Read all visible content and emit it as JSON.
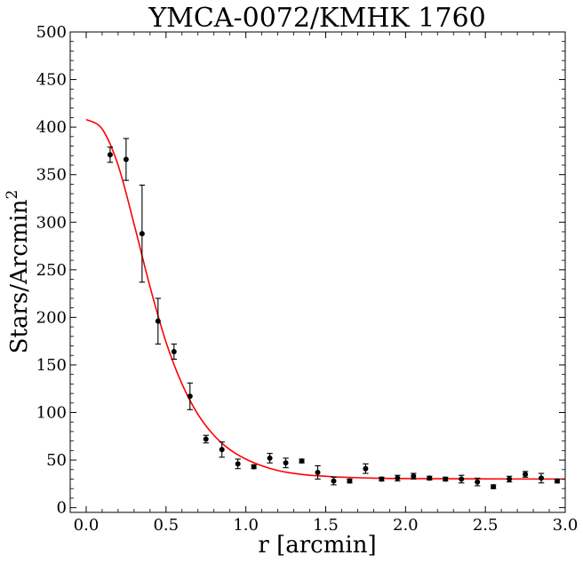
{
  "chart_data": {
    "type": "scatter",
    "title": "YMCA-0072/KMHK 1760",
    "xlabel": "r [arcmin]",
    "ylabel": "Stars/Arcmin",
    "ylabel_superscript": "2",
    "xlim": [
      -0.1,
      3.0
    ],
    "ylim": [
      -5,
      500
    ],
    "xticks": [
      "0.0",
      "0.5",
      "1.0",
      "1.5",
      "2.0",
      "2.5",
      "3.0"
    ],
    "yticks": [
      "0",
      "50",
      "100",
      "150",
      "200",
      "250",
      "300",
      "350",
      "400",
      "450",
      "500"
    ],
    "grid": false,
    "points_color": "#000000",
    "fit_color": "#ff0000",
    "points": [
      {
        "x": 0.15,
        "y": 371,
        "err": 8
      },
      {
        "x": 0.25,
        "y": 366,
        "err": 22
      },
      {
        "x": 0.35,
        "y": 288,
        "err": 51
      },
      {
        "x": 0.45,
        "y": 196,
        "err": 24
      },
      {
        "x": 0.55,
        "y": 164,
        "err": 8
      },
      {
        "x": 0.65,
        "y": 117,
        "err": 14
      },
      {
        "x": 0.75,
        "y": 72,
        "err": 4
      },
      {
        "x": 0.85,
        "y": 61,
        "err": 8
      },
      {
        "x": 0.95,
        "y": 46,
        "err": 5
      },
      {
        "x": 1.05,
        "y": 43,
        "err": 2
      },
      {
        "x": 1.15,
        "y": 52,
        "err": 5
      },
      {
        "x": 1.25,
        "y": 47,
        "err": 5
      },
      {
        "x": 1.35,
        "y": 49,
        "err": 2
      },
      {
        "x": 1.45,
        "y": 37,
        "err": 7
      },
      {
        "x": 1.55,
        "y": 28,
        "err": 4
      },
      {
        "x": 1.65,
        "y": 28,
        "err": 2
      },
      {
        "x": 1.75,
        "y": 41,
        "err": 5
      },
      {
        "x": 1.85,
        "y": 30,
        "err": 2
      },
      {
        "x": 1.95,
        "y": 31,
        "err": 3
      },
      {
        "x": 2.05,
        "y": 33,
        "err": 3
      },
      {
        "x": 2.15,
        "y": 31,
        "err": 2
      },
      {
        "x": 2.25,
        "y": 30,
        "err": 2
      },
      {
        "x": 2.35,
        "y": 30,
        "err": 4
      },
      {
        "x": 2.45,
        "y": 27,
        "err": 4
      },
      {
        "x": 2.55,
        "y": 22,
        "err": 2
      },
      {
        "x": 2.65,
        "y": 30,
        "err": 3
      },
      {
        "x": 2.75,
        "y": 35,
        "err": 3
      },
      {
        "x": 2.85,
        "y": 31,
        "err": 5
      },
      {
        "x": 2.95,
        "y": 28,
        "err": 2
      }
    ],
    "fit": {
      "x": [
        0.0,
        0.1,
        0.2,
        0.3,
        0.4,
        0.5,
        0.6,
        0.7,
        0.8,
        0.9,
        1.0,
        1.1,
        1.2,
        1.3,
        1.4,
        1.5,
        1.6,
        1.8,
        2.0,
        2.5,
        3.0
      ],
      "y": [
        408,
        398,
        360,
        298,
        232,
        174,
        130,
        98,
        76,
        61,
        51,
        44,
        39,
        36,
        34,
        33,
        32,
        31,
        30.5,
        30.2,
        30
      ]
    }
  }
}
